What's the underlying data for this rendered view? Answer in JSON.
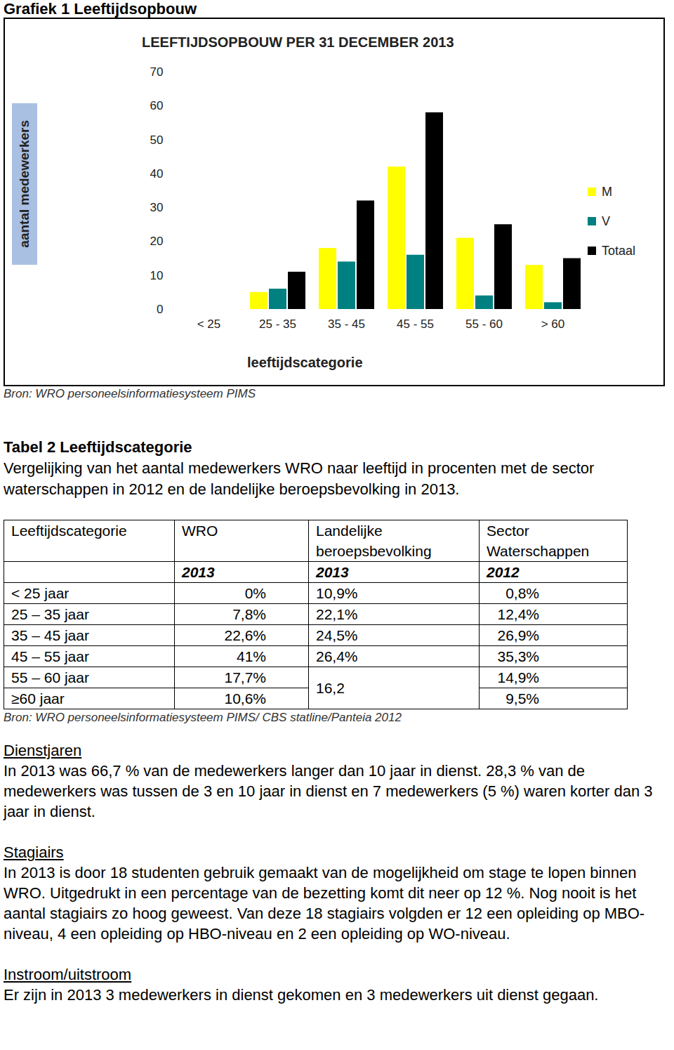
{
  "header": {
    "title": "Grafiek 1 Leeftijdsopbouw"
  },
  "chart_data": {
    "type": "bar",
    "title": "LEEFTIJDSOPBOUW PER 31 DECEMBER 2013",
    "categories": [
      "< 25",
      "25 - 35",
      "35 - 45",
      "45 - 55",
      "55 - 60",
      "> 60"
    ],
    "series": [
      {
        "name": "M",
        "color": "#ffff00",
        "values": [
          0,
          5,
          18,
          42,
          21,
          13
        ]
      },
      {
        "name": "V",
        "color": "#008080",
        "values": [
          0,
          6,
          14,
          16,
          4,
          2
        ]
      },
      {
        "name": "Totaal",
        "color": "#000000",
        "values": [
          0,
          11,
          32,
          58,
          25,
          15
        ]
      }
    ],
    "ylabel": "aantal medewerkers",
    "xlabel": "leeftijdscategorie",
    "ylim": [
      0,
      70
    ],
    "yticks": [
      0,
      10,
      20,
      30,
      40,
      50,
      60,
      70
    ],
    "grid": false,
    "legend": "right"
  },
  "chart_source": "Bron: WRO personeelsinformatiesysteem PIMS",
  "table": {
    "title": "Tabel 2 Leeftijdscategorie",
    "description": "Vergelijking van het aantal medewerkers WRO naar leeftijd in procenten met de sector waterschappen in 2012 en de landelijke beroepsbevolking in 2013.",
    "header": [
      "Leeftijdscategorie",
      "WRO",
      "Landelijke beroepsbevolking",
      "Sector Waterschappen"
    ],
    "subheader": [
      null,
      "2013",
      "2013",
      "2012"
    ],
    "rows": [
      [
        "< 25 jaar",
        "0%",
        "10,9%",
        "0,8%"
      ],
      [
        "25 – 35 jaar",
        "7,8%",
        "22,1%",
        "12,4%"
      ],
      [
        "35 – 45 jaar",
        "22,6%",
        "24,5%",
        "26,9%"
      ],
      [
        "45 – 55 jaar",
        "41%",
        "26,4%",
        "35,3%"
      ],
      [
        "55 – 60 jaar",
        "17,7%",
        "16,2",
        "14,9%"
      ],
      [
        "≥60 jaar",
        "10,6%",
        null,
        "9,5%"
      ]
    ],
    "source": "Bron: WRO personeelsinformatiesysteem PIMS/ CBS statline/Panteia 2012"
  },
  "sections": [
    {
      "heading": "Dienstjaren",
      "text": "In 2013 was 66,7 % van de medewerkers langer dan 10 jaar in dienst. 28,3 % van de medewerkers was tussen de 3 en 10 jaar in dienst en 7 medewerkers (5 %) waren korter dan 3  jaar in dienst."
    },
    {
      "heading": "Stagiairs",
      "text": "In 2013 is door 18 studenten gebruik gemaakt van de mogelijkheid om stage te lopen binnen WRO. Uitgedrukt in een percentage van de bezetting komt dit neer op 12 %. Nog nooit is het aantal stagiairs zo hoog geweest. Van deze 18 stagiairs volgden er 12 een opleiding op MBO-niveau, 4 een opleiding op HBO-niveau en 2 een opleiding op WO-niveau."
    },
    {
      "heading": "Instroom/uitstroom",
      "text": "Er zijn in 2013 3 medewerkers in dienst gekomen en 3 medewerkers uit dienst gegaan."
    }
  ]
}
